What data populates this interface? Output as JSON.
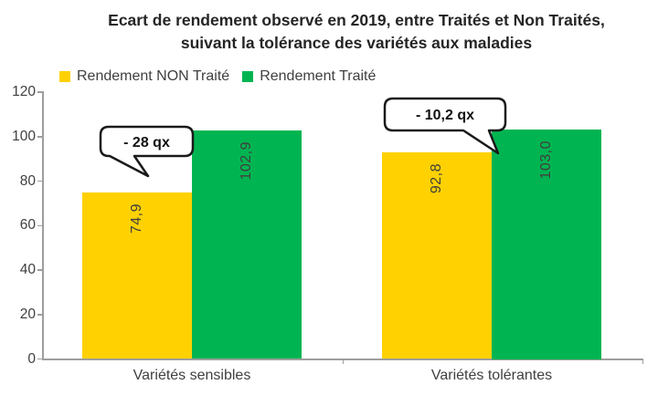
{
  "title": {
    "line1": "Ecart de rendement observé en 2019, entre Traités et Non Traités,",
    "line2": "suivant la tolérance des variétés aux maladies"
  },
  "legend": {
    "items": [
      {
        "label": "Rendement NON Traité",
        "color": "#FFD100"
      },
      {
        "label": "Rendement Traité",
        "color": "#00B551"
      }
    ]
  },
  "chart_data": {
    "type": "bar",
    "title": "Ecart de rendement observé en 2019, entre Traités et Non Traités, suivant la tolérance des variétés aux maladies",
    "categories": [
      "Variétés sensibles",
      "Variétés tolérantes"
    ],
    "series": [
      {
        "name": "Rendement NON Traité",
        "color": "#FFD100",
        "values": [
          74.9,
          92.8
        ],
        "data_labels": [
          "74,9",
          "92,8"
        ]
      },
      {
        "name": "Rendement Traité",
        "color": "#00B551",
        "values": [
          102.9,
          103.0
        ],
        "data_labels": [
          "102,9",
          "103,0"
        ]
      }
    ],
    "ylim": [
      0,
      120
    ],
    "yticks": [
      0,
      20,
      40,
      60,
      80,
      100,
      120
    ],
    "grid": false,
    "legend_position": "top-left",
    "annotations": [
      {
        "text": "- 28 qx"
      },
      {
        "text": "- 10,2 qx"
      }
    ]
  }
}
